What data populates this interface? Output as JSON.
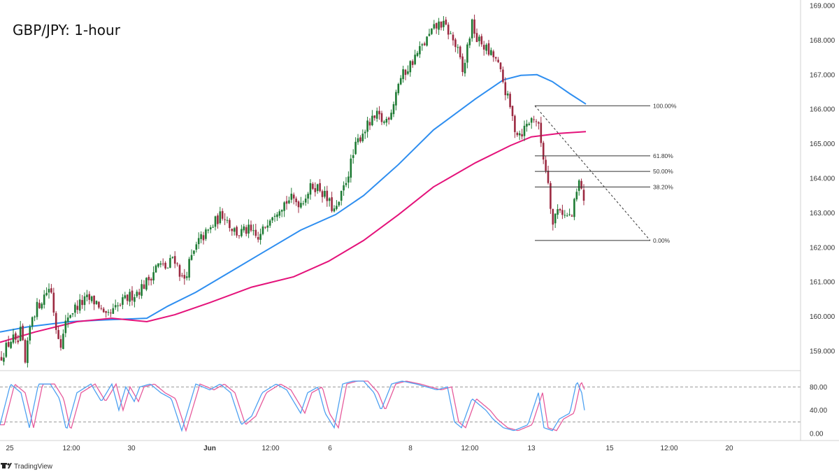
{
  "chart_data": {
    "type": "candlestick",
    "title": "GBP/JPY: 1-hour",
    "brand": "TradingView",
    "price_axis": {
      "ylim": [
        158.4,
        169.0
      ],
      "ticks": [
        "169.000",
        "168.000",
        "167.000",
        "166.000",
        "165.000",
        "164.000",
        "163.000",
        "162.000",
        "161.000",
        "160.000",
        "159.000"
      ]
    },
    "oscillator_axis": {
      "ylim": [
        -10,
        115
      ],
      "ticks": [
        "80.00",
        "40.00",
        "0.00"
      ],
      "bands": [
        80,
        20
      ]
    },
    "time_axis": {
      "labels": [
        "25",
        "12:00",
        "30",
        "Jun",
        "12:00",
        "6",
        "12:00",
        "8",
        "12:00",
        "13",
        "15",
        "12:00",
        "20"
      ],
      "bold": [
        "Jun"
      ]
    },
    "candles": {
      "anchors": [
        [
          0,
          158.8
        ],
        [
          6,
          159.0
        ],
        [
          12,
          159.2
        ],
        [
          18,
          159.4
        ],
        [
          24,
          159.1
        ],
        [
          30,
          159.6
        ],
        [
          36,
          158.6
        ],
        [
          45,
          160.0
        ],
        [
          60,
          160.5
        ],
        [
          72,
          160.9
        ],
        [
          80,
          159.7
        ],
        [
          88,
          159.2
        ],
        [
          96,
          160.0
        ],
        [
          110,
          160.3
        ],
        [
          125,
          160.5
        ],
        [
          140,
          160.4
        ],
        [
          150,
          159.9
        ],
        [
          165,
          160.2
        ],
        [
          180,
          160.5
        ],
        [
          195,
          160.7
        ],
        [
          210,
          161.0
        ],
        [
          225,
          161.5
        ],
        [
          240,
          161.4
        ],
        [
          248,
          161.8
        ],
        [
          255,
          161.4
        ],
        [
          262,
          161.0
        ],
        [
          270,
          161.5
        ],
        [
          285,
          162.2
        ],
        [
          300,
          162.5
        ],
        [
          310,
          162.8
        ],
        [
          320,
          163.0
        ],
        [
          330,
          162.6
        ],
        [
          340,
          162.4
        ],
        [
          355,
          162.5
        ],
        [
          370,
          162.2
        ],
        [
          385,
          162.9
        ],
        [
          400,
          163.2
        ],
        [
          415,
          163.4
        ],
        [
          430,
          163.3
        ],
        [
          440,
          163.6
        ],
        [
          448,
          163.8
        ],
        [
          458,
          163.7
        ],
        [
          470,
          163.3
        ],
        [
          480,
          163.0
        ],
        [
          490,
          163.6
        ],
        [
          500,
          164.3
        ],
        [
          510,
          165.0
        ],
        [
          520,
          165.4
        ],
        [
          530,
          165.6
        ],
        [
          540,
          165.8
        ],
        [
          550,
          165.6
        ],
        [
          560,
          166.0
        ],
        [
          570,
          166.8
        ],
        [
          580,
          167.1
        ],
        [
          590,
          167.4
        ],
        [
          600,
          167.7
        ],
        [
          610,
          168.0
        ],
        [
          620,
          168.3
        ],
        [
          630,
          168.5
        ],
        [
          640,
          168.3
        ],
        [
          648,
          168.0
        ],
        [
          656,
          167.6
        ],
        [
          662,
          167.0
        ],
        [
          670,
          168.0
        ],
        [
          676,
          168.5
        ],
        [
          682,
          168.0
        ],
        [
          690,
          167.9
        ],
        [
          700,
          167.6
        ],
        [
          708,
          167.5
        ],
        [
          715,
          167.1
        ],
        [
          722,
          166.6
        ],
        [
          730,
          166.0
        ],
        [
          737,
          165.4
        ],
        [
          745,
          165.3
        ],
        [
          755,
          165.6
        ],
        [
          765,
          165.8
        ],
        [
          770,
          165.5
        ],
        [
          775,
          164.9
        ],
        [
          780,
          164.3
        ],
        [
          785,
          163.9
        ],
        [
          790,
          162.6
        ],
        [
          795,
          163.0
        ],
        [
          800,
          163.2
        ],
        [
          808,
          162.9
        ],
        [
          818,
          162.9
        ],
        [
          825,
          163.6
        ],
        [
          830,
          164.0
        ],
        [
          833,
          163.6
        ],
        [
          836,
          163.0
        ]
      ],
      "up_color": "#1e7b34",
      "down_color": "#9c2a41"
    },
    "series": [
      {
        "name": "",
        "color": "#2e8ef0",
        "values": [
          [
            0,
            159.55
          ],
          [
            40,
            159.7
          ],
          [
            100,
            159.85
          ],
          [
            150,
            159.9
          ],
          [
            210,
            159.95
          ],
          [
            240,
            160.3
          ],
          [
            280,
            160.7
          ],
          [
            330,
            161.3
          ],
          [
            380,
            161.9
          ],
          [
            430,
            162.5
          ],
          [
            480,
            162.95
          ],
          [
            520,
            163.5
          ],
          [
            570,
            164.4
          ],
          [
            620,
            165.4
          ],
          [
            680,
            166.3
          ],
          [
            720,
            166.85
          ],
          [
            745,
            166.98
          ],
          [
            768,
            167.0
          ],
          [
            790,
            166.8
          ],
          [
            815,
            166.45
          ],
          [
            838,
            166.15
          ]
        ]
      },
      {
        "name": "",
        "color": "#e4127a",
        "values": [
          [
            0,
            159.25
          ],
          [
            50,
            159.55
          ],
          [
            110,
            159.85
          ],
          [
            160,
            159.95
          ],
          [
            210,
            159.85
          ],
          [
            250,
            160.05
          ],
          [
            300,
            160.4
          ],
          [
            360,
            160.85
          ],
          [
            420,
            161.15
          ],
          [
            470,
            161.6
          ],
          [
            520,
            162.2
          ],
          [
            570,
            162.95
          ],
          [
            620,
            163.75
          ],
          [
            680,
            164.45
          ],
          [
            730,
            164.95
          ],
          [
            760,
            165.2
          ],
          [
            800,
            165.3
          ],
          [
            838,
            165.35
          ]
        ]
      }
    ],
    "fibonacci": {
      "levels": [
        {
          "label": "100.00%",
          "price": 166.1
        },
        {
          "label": "61.80%",
          "price": 164.65
        },
        {
          "label": "50.00%",
          "price": 164.2
        },
        {
          "label": "38.20%",
          "price": 163.75
        },
        {
          "label": "0.00%",
          "price": 162.2
        }
      ],
      "x_start": 765,
      "x_end": 930
    },
    "oscillator": {
      "k_color": "#4ea1f1",
      "d_color": "#e65b9c",
      "anchors": [
        [
          0,
          15
        ],
        [
          15,
          85
        ],
        [
          30,
          70
        ],
        [
          42,
          10
        ],
        [
          55,
          85
        ],
        [
          72,
          85
        ],
        [
          85,
          60
        ],
        [
          95,
          5
        ],
        [
          110,
          70
        ],
        [
          130,
          85
        ],
        [
          145,
          55
        ],
        [
          160,
          85
        ],
        [
          170,
          40
        ],
        [
          180,
          80
        ],
        [
          192,
          55
        ],
        [
          200,
          80
        ],
        [
          215,
          85
        ],
        [
          230,
          70
        ],
        [
          245,
          60
        ],
        [
          260,
          5
        ],
        [
          280,
          85
        ],
        [
          300,
          75
        ],
        [
          315,
          85
        ],
        [
          330,
          70
        ],
        [
          345,
          15
        ],
        [
          360,
          30
        ],
        [
          375,
          70
        ],
        [
          395,
          85
        ],
        [
          410,
          75
        ],
        [
          430,
          35
        ],
        [
          440,
          70
        ],
        [
          455,
          80
        ],
        [
          465,
          35
        ],
        [
          478,
          10
        ],
        [
          490,
          85
        ],
        [
          505,
          90
        ],
        [
          520,
          90
        ],
        [
          535,
          70
        ],
        [
          545,
          40
        ],
        [
          560,
          85
        ],
        [
          575,
          90
        ],
        [
          595,
          85
        ],
        [
          610,
          80
        ],
        [
          625,
          75
        ],
        [
          640,
          80
        ],
        [
          650,
          20
        ],
        [
          660,
          10
        ],
        [
          675,
          60
        ],
        [
          695,
          40
        ],
        [
          705,
          25
        ],
        [
          720,
          10
        ],
        [
          735,
          5
        ],
        [
          755,
          15
        ],
        [
          770,
          70
        ],
        [
          778,
          10
        ],
        [
          790,
          5
        ],
        [
          800,
          25
        ],
        [
          815,
          35
        ],
        [
          825,
          90
        ],
        [
          832,
          70
        ],
        [
          836,
          40
        ]
      ]
    }
  }
}
